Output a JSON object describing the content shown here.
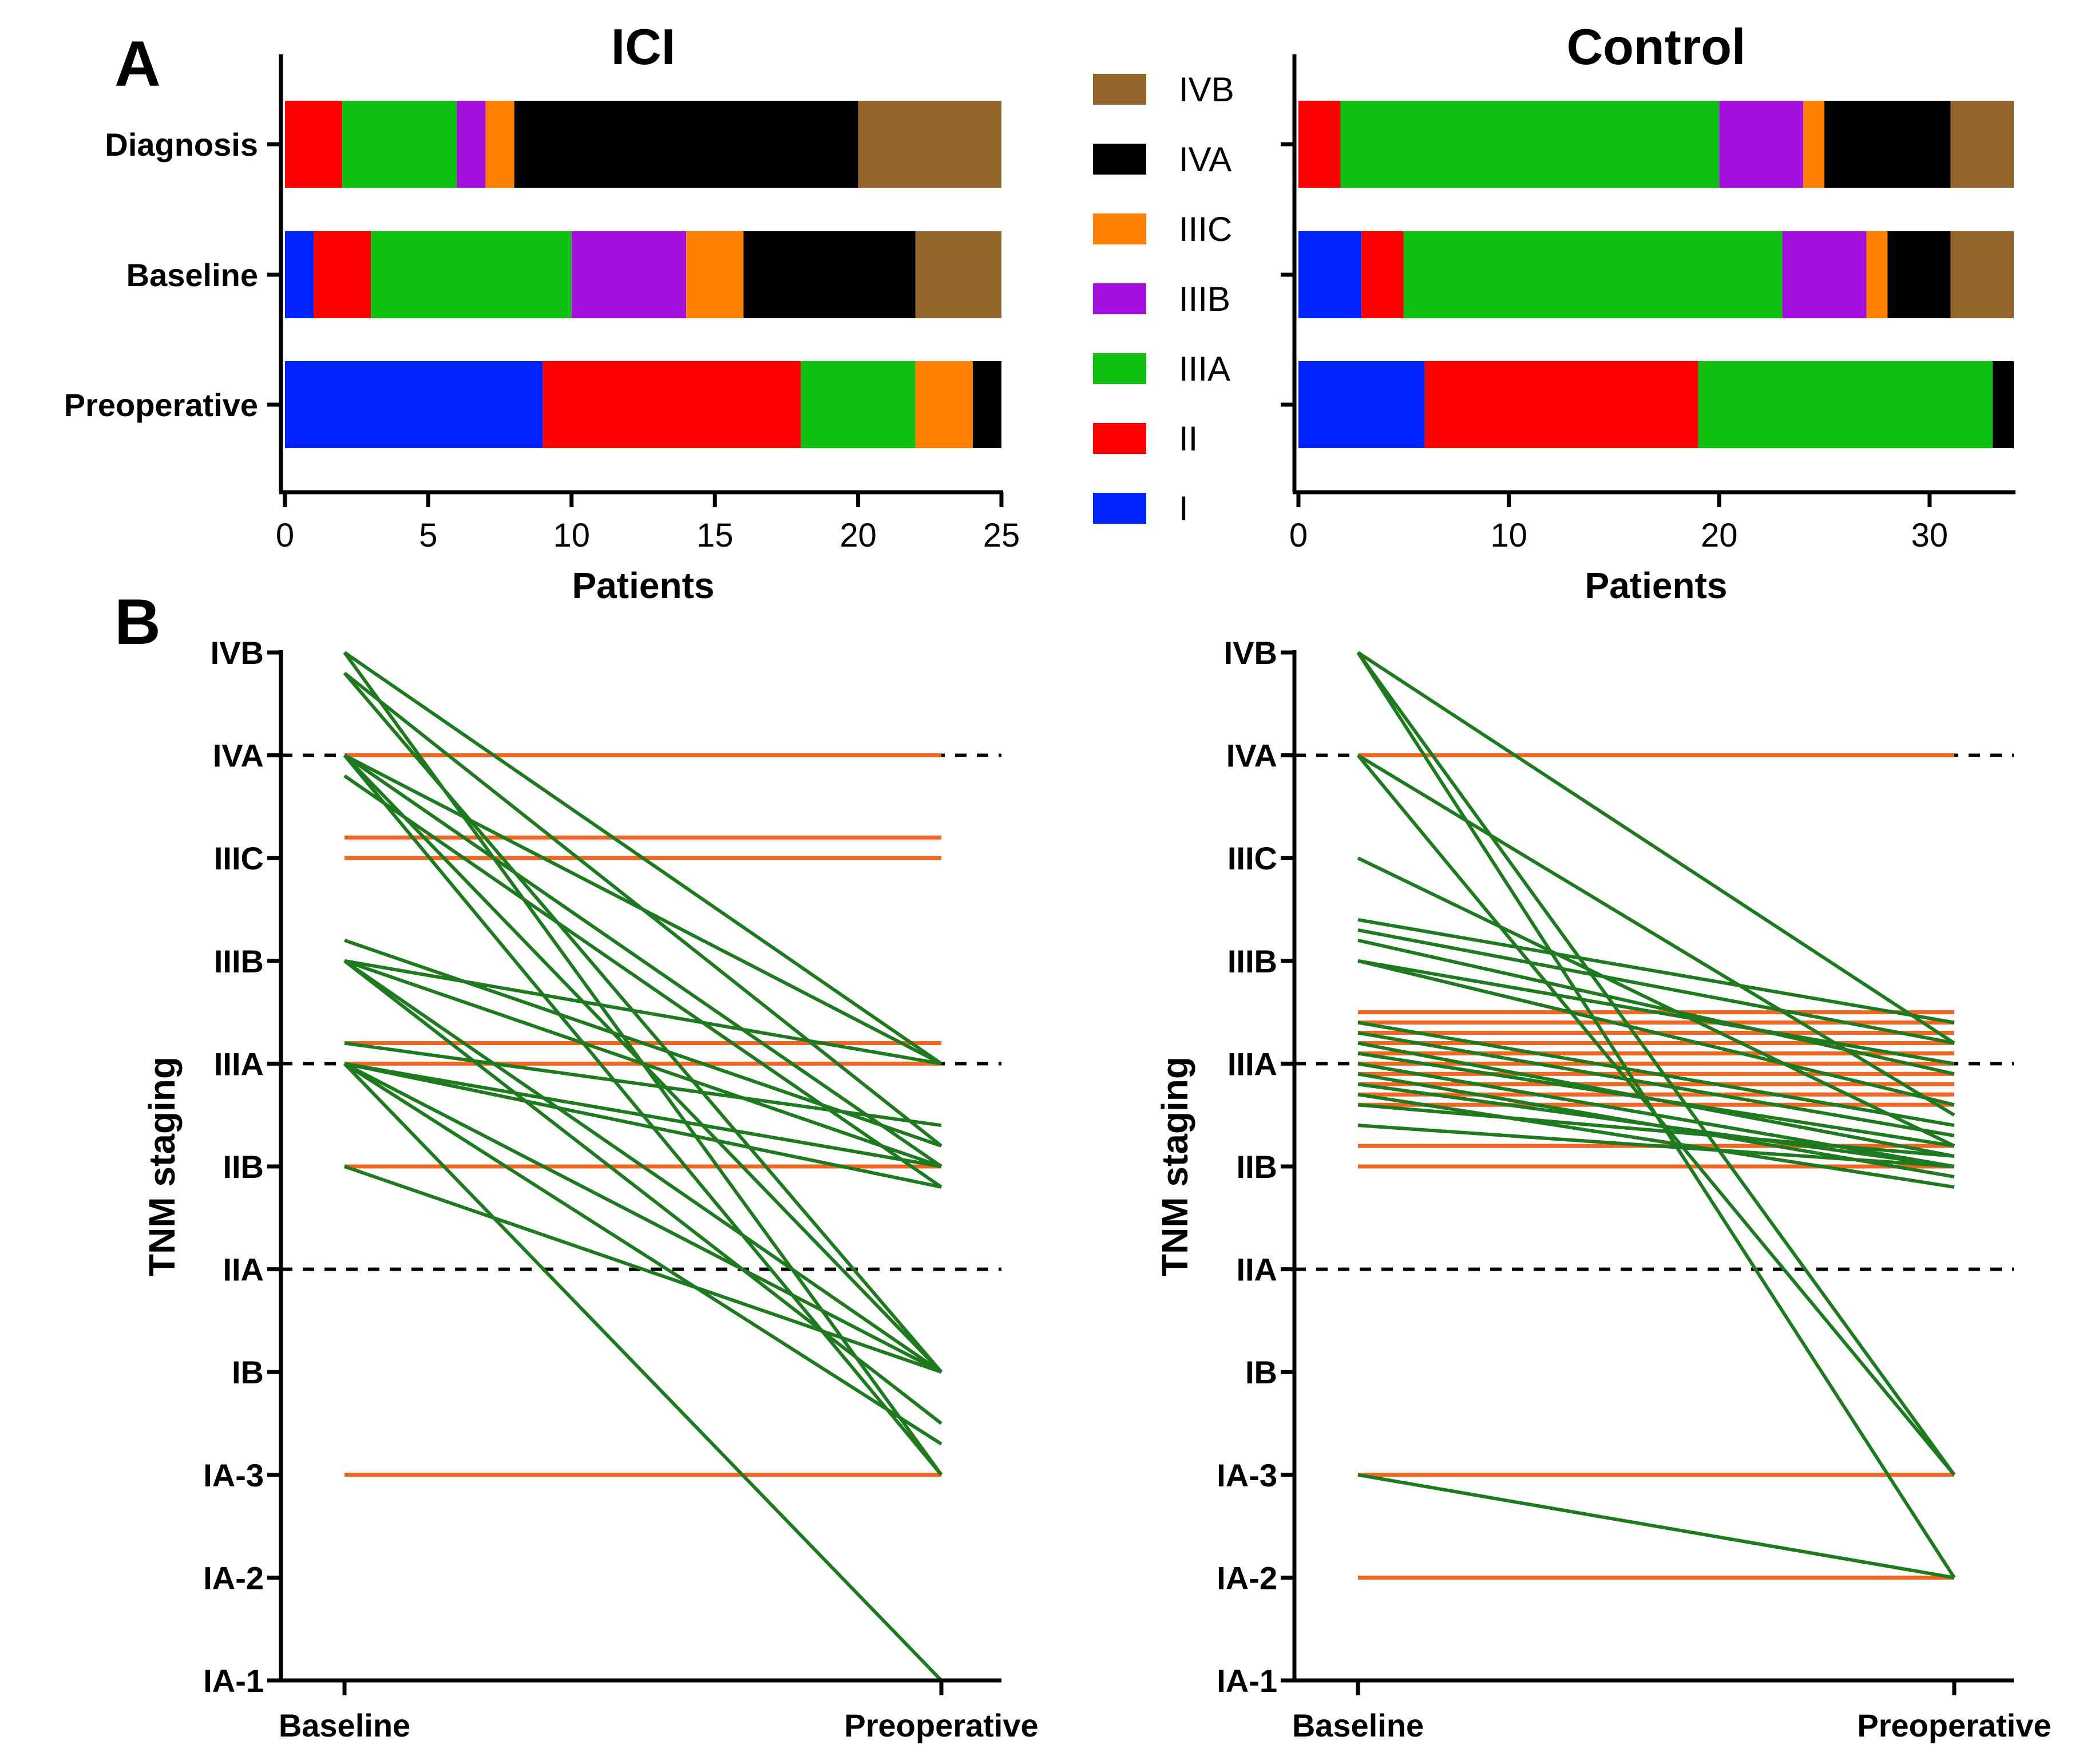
{
  "panel_labels": {
    "a": "A",
    "b": "B"
  },
  "colors": {
    "IVB": "#94652a",
    "IVA": "#000000",
    "IIIC": "#ff8000",
    "IIIB": "#a30fdd",
    "IIIA": "#10c010",
    "II": "#ff0000",
    "I": "#0022ff",
    "upstaged": "#1e7a1e",
    "stable": "#f26522",
    "axis": "#000000"
  },
  "legend": {
    "items": [
      {
        "label": "IVB",
        "color": "#94652a"
      },
      {
        "label": "IVA",
        "color": "#000000"
      },
      {
        "label": "IIIC",
        "color": "#ff8000"
      },
      {
        "label": "IIIB",
        "color": "#a30fdd"
      },
      {
        "label": "IIIA",
        "color": "#10c010"
      },
      {
        "label": "II",
        "color": "#ff0000"
      },
      {
        "label": "I",
        "color": "#0022ff"
      }
    ]
  },
  "chart_data": [
    {
      "type": "bar",
      "subtype": "horizontal-stacked",
      "title": "ICI",
      "xlabel": "Patients",
      "ylabel": "",
      "xlim": [
        0,
        25
      ],
      "xticks": [
        "0",
        "5",
        "10",
        "15",
        "20",
        "25"
      ],
      "xtick_values": [
        0,
        5,
        10,
        15,
        20,
        25
      ],
      "categories": [
        "Diagnosis",
        "Baseline",
        "Preoperative"
      ],
      "series": [
        {
          "name": "I",
          "values": [
            0,
            1,
            9
          ]
        },
        {
          "name": "II",
          "values": [
            2,
            2,
            9
          ]
        },
        {
          "name": "IIIA",
          "values": [
            4,
            7,
            4
          ]
        },
        {
          "name": "IIIB",
          "values": [
            1,
            4,
            0
          ]
        },
        {
          "name": "IIIC",
          "values": [
            1,
            2,
            2
          ]
        },
        {
          "name": "IVA",
          "values": [
            12,
            6,
            1
          ]
        },
        {
          "name": "IVB",
          "values": [
            5,
            3,
            0
          ]
        }
      ]
    },
    {
      "type": "bar",
      "subtype": "horizontal-stacked",
      "title": "Control",
      "xlabel": "Patients",
      "ylabel": "",
      "xlim": [
        0,
        34
      ],
      "xticks": [
        "0",
        "10",
        "20",
        "30"
      ],
      "xtick_values": [
        0,
        10,
        20,
        30
      ],
      "categories": [
        "Diagnosis",
        "Baseline",
        "Preoperative"
      ],
      "series": [
        {
          "name": "I",
          "values": [
            0,
            3,
            6
          ]
        },
        {
          "name": "II",
          "values": [
            2,
            2,
            13
          ]
        },
        {
          "name": "IIIA",
          "values": [
            18,
            18,
            14
          ]
        },
        {
          "name": "IIIB",
          "values": [
            4,
            4,
            0
          ]
        },
        {
          "name": "IIIC",
          "values": [
            1,
            1,
            0
          ]
        },
        {
          "name": "IVA",
          "values": [
            6,
            3,
            1
          ]
        },
        {
          "name": "IVB",
          "values": [
            3,
            3,
            0
          ]
        }
      ]
    },
    {
      "type": "line",
      "subtype": "slopegraph",
      "title": "ICI",
      "ylabel": "TNM staging",
      "categories": [
        "Baseline",
        "Preoperative"
      ],
      "stages": [
        "IA-1",
        "IA-2",
        "IA-3",
        "IB",
        "IIA",
        "IIB",
        "IIIA",
        "IIIB",
        "IIIC",
        "IVA",
        "IVB"
      ],
      "reference_lines": [
        10,
        7,
        5
      ],
      "stable": [
        [
          10,
          10
        ],
        [
          9.2,
          9.2
        ],
        [
          9,
          9
        ],
        [
          7.2,
          7.2
        ],
        [
          7,
          7
        ],
        [
          6,
          6
        ],
        [
          3,
          3
        ]
      ],
      "upstaged": [
        [
          11,
          7
        ],
        [
          10.8,
          6.2
        ],
        [
          11,
          3
        ],
        [
          10.8,
          4
        ],
        [
          10,
          7
        ],
        [
          10,
          6
        ],
        [
          9.8,
          5.8
        ],
        [
          10,
          3
        ],
        [
          10,
          4
        ],
        [
          8.2,
          6.2
        ],
        [
          8,
          6
        ],
        [
          8,
          7
        ],
        [
          8,
          4
        ],
        [
          8,
          3.5
        ],
        [
          7.2,
          6.4
        ],
        [
          7,
          6
        ],
        [
          7,
          5.8
        ],
        [
          7,
          4
        ],
        [
          7,
          3.3
        ],
        [
          6,
          4
        ],
        [
          7,
          1
        ]
      ]
    },
    {
      "type": "line",
      "subtype": "slopegraph",
      "title": "Control",
      "ylabel": "TNM staging",
      "categories": [
        "Baseline",
        "Preoperative"
      ],
      "stages": [
        "IA-1",
        "IA-2",
        "IA-3",
        "IB",
        "IIA",
        "IIB",
        "IIIA",
        "IIIB",
        "IIIC",
        "IVA",
        "IVB"
      ],
      "reference_lines": [
        10,
        7,
        5
      ],
      "stable": [
        [
          10,
          10
        ],
        [
          7.5,
          7.5
        ],
        [
          7.4,
          7.4
        ],
        [
          7.3,
          7.3
        ],
        [
          7.2,
          7.2
        ],
        [
          7.1,
          7.1
        ],
        [
          7,
          7
        ],
        [
          6.9,
          6.9
        ],
        [
          6.8,
          6.8
        ],
        [
          6.7,
          6.7
        ],
        [
          6.6,
          6.6
        ],
        [
          6.2,
          6.2
        ],
        [
          6,
          6
        ],
        [
          3,
          3
        ],
        [
          2,
          2
        ]
      ],
      "upstaged": [
        [
          11,
          7.2
        ],
        [
          11,
          3
        ],
        [
          11,
          2
        ],
        [
          10,
          6.5
        ],
        [
          10,
          3
        ],
        [
          9,
          6.2
        ],
        [
          8.4,
          7.4
        ],
        [
          8.3,
          7.2
        ],
        [
          8.2,
          6.9
        ],
        [
          8,
          7
        ],
        [
          8,
          6.6
        ],
        [
          7.4,
          6.4
        ],
        [
          7.3,
          6.3
        ],
        [
          7.2,
          6.1
        ],
        [
          7.1,
          6.2
        ],
        [
          7,
          6
        ],
        [
          6.9,
          5.9
        ],
        [
          6.8,
          6
        ],
        [
          6.7,
          5.8
        ],
        [
          6.6,
          6.1
        ],
        [
          6.4,
          6
        ],
        [
          3,
          2
        ]
      ]
    }
  ]
}
